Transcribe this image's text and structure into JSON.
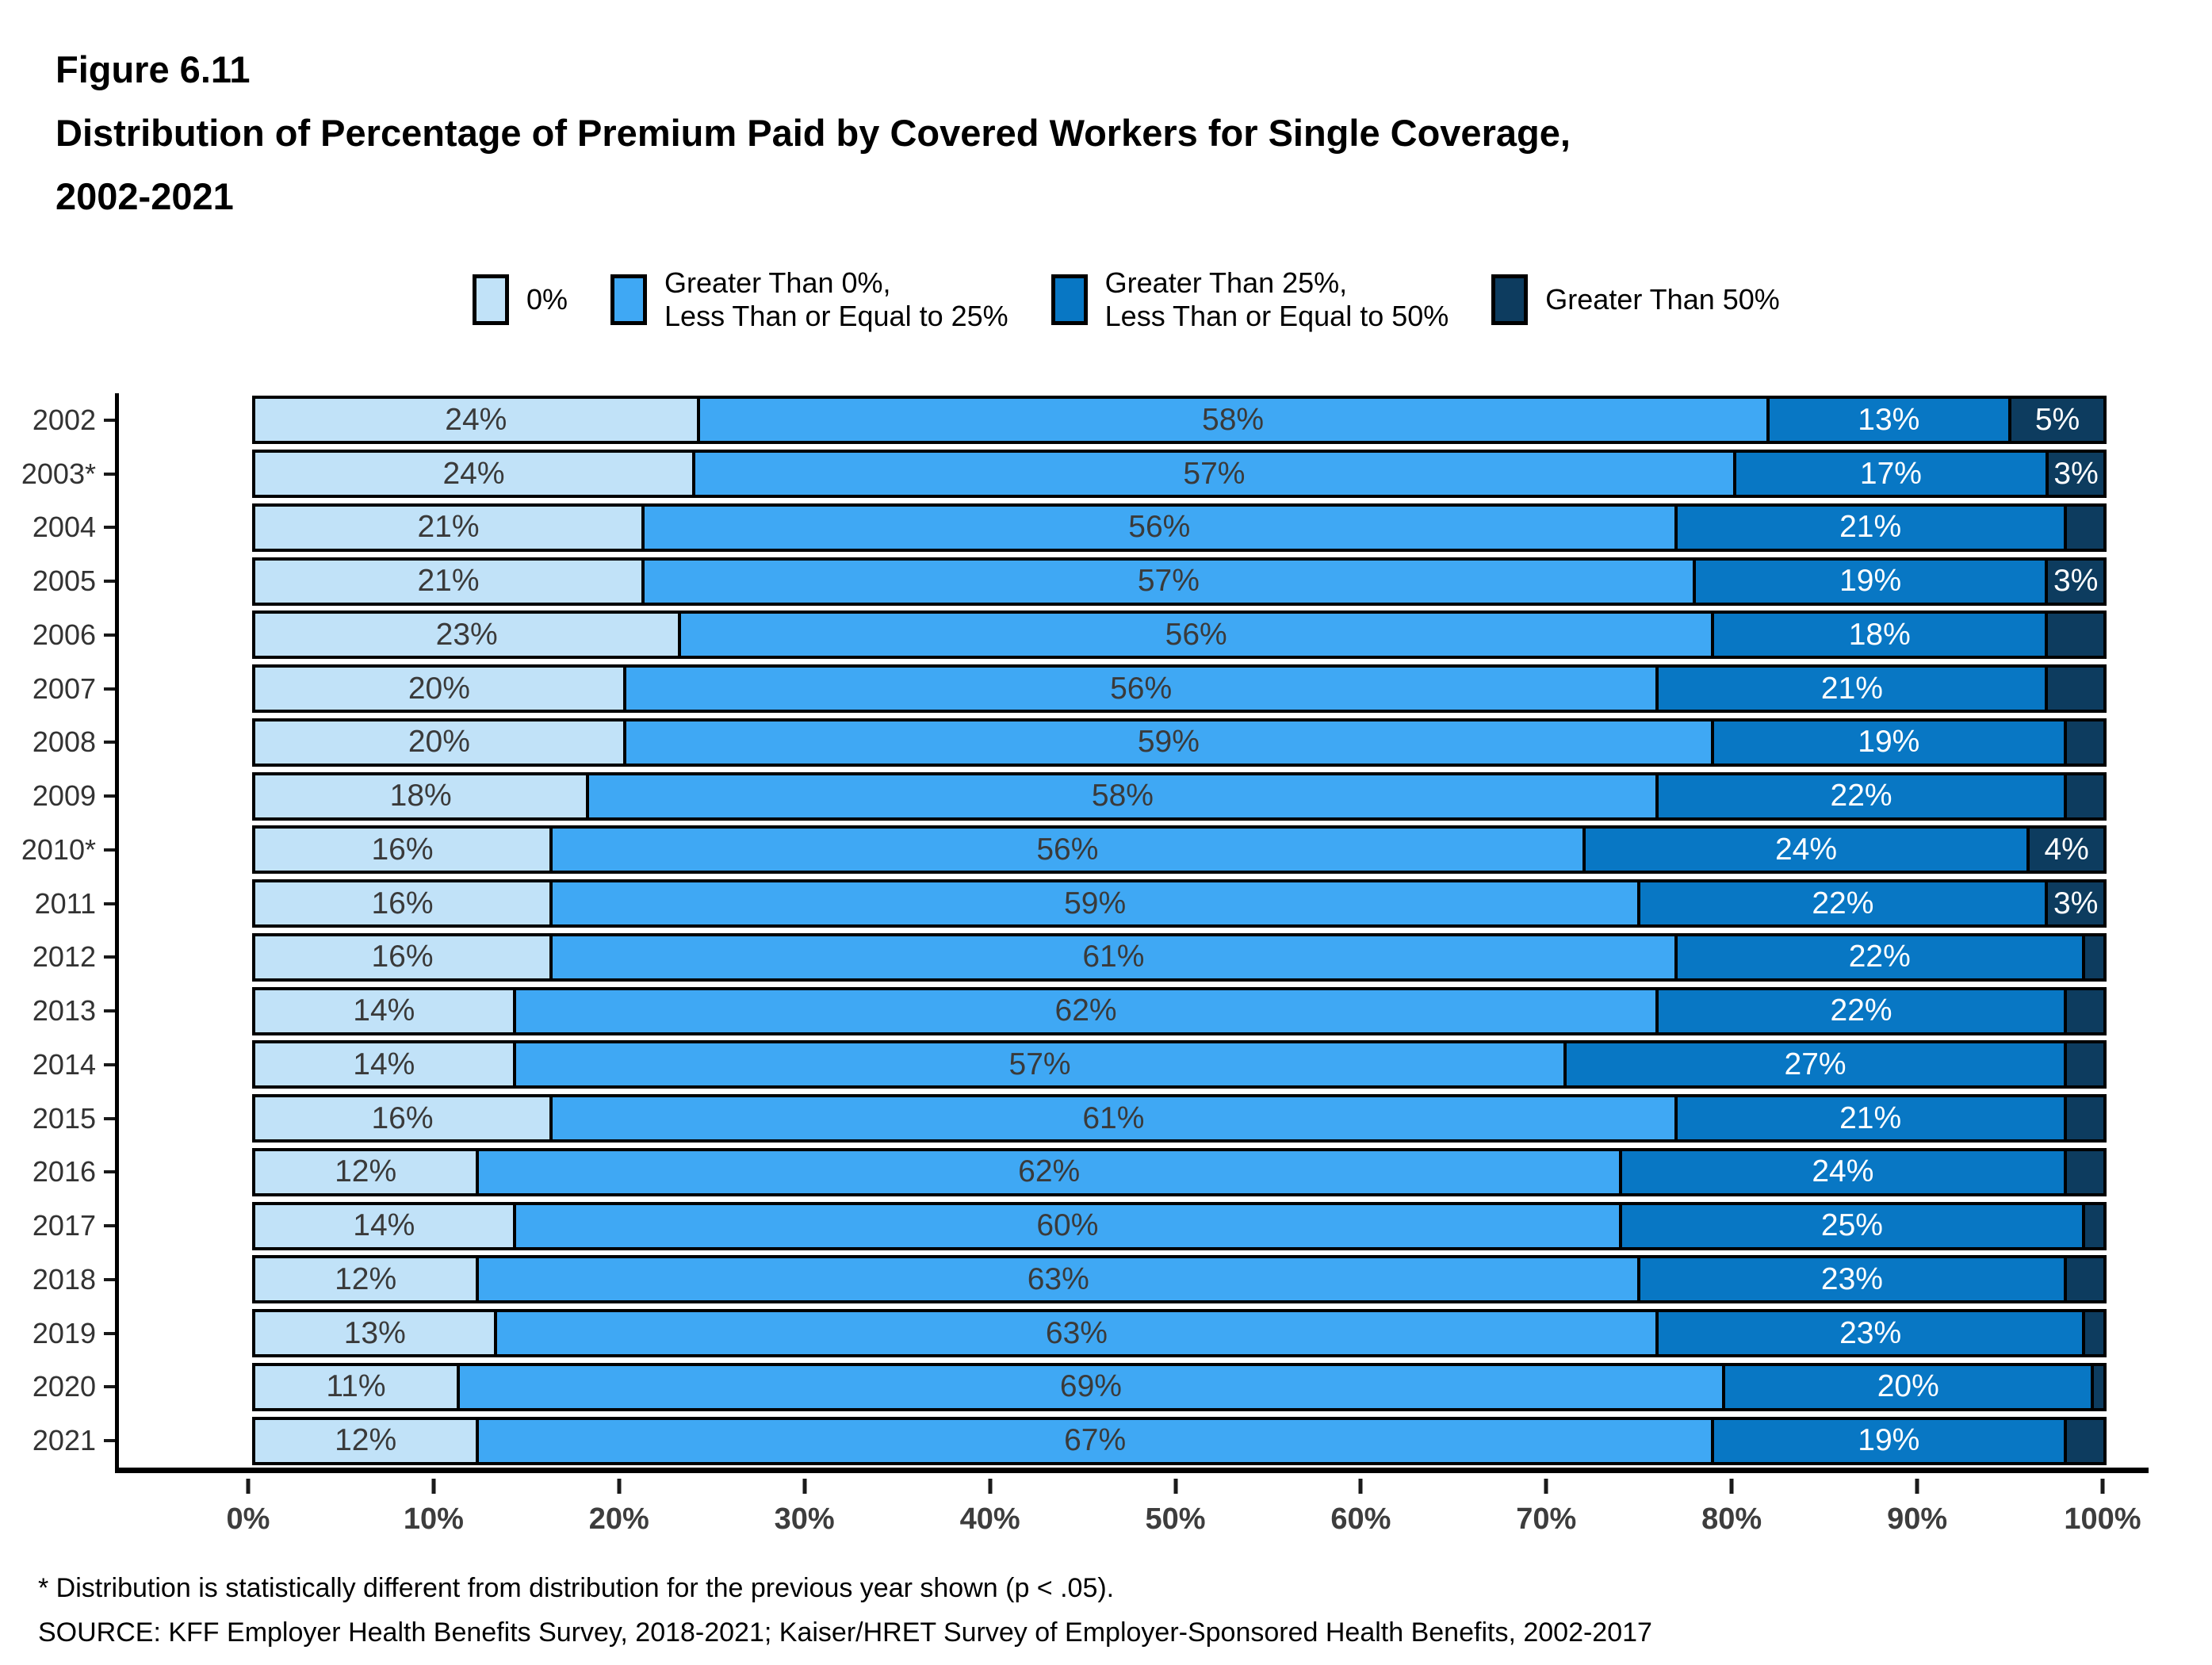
{
  "figure": {
    "label": "Figure 6.11",
    "title": "Distribution of Percentage of Premium Paid by Covered Workers for Single Coverage,",
    "subtitle": "2002-2021"
  },
  "legend": {
    "items": [
      {
        "label": "0%",
        "color": "#C1E2F8"
      },
      {
        "label": "Greater Than 0%,\nLess Than or Equal to 25%",
        "color": "#3FA8F4"
      },
      {
        "label": "Greater Than 25%,\nLess Than or Equal to 50%",
        "color": "#0877C4"
      },
      {
        "label": "Greater Than 50%",
        "color": "#0D3C5F"
      }
    ]
  },
  "chart_data": {
    "type": "bar",
    "orientation": "horizontal",
    "stacked": true,
    "title": "Distribution of Percentage of Premium Paid by Covered Workers for Single Coverage, 2002-2021",
    "categories": [
      "2002",
      "2003*",
      "2004",
      "2005",
      "2006",
      "2007",
      "2008",
      "2009",
      "2010*",
      "2011",
      "2012",
      "2013",
      "2014",
      "2015",
      "2016",
      "2017",
      "2018",
      "2019",
      "2020",
      "2021"
    ],
    "series": [
      {
        "name": "0%",
        "color": "#C1E2F8",
        "label_color": "#3A3A3A",
        "values": [
          24,
          24,
          21,
          21,
          23,
          20,
          20,
          18,
          16,
          16,
          16,
          14,
          14,
          16,
          12,
          14,
          12,
          13,
          11,
          12
        ],
        "labels": [
          "24%",
          "24%",
          "21%",
          "21%",
          "23%",
          "20%",
          "20%",
          "18%",
          "16%",
          "16%",
          "16%",
          "14%",
          "14%",
          "16%",
          "12%",
          "14%",
          "12%",
          "13%",
          "11%",
          "12%"
        ]
      },
      {
        "name": "Greater Than 0%, Less Than or Equal to 25%",
        "color": "#3FA8F4",
        "label_color": "#3A3A3A",
        "values": [
          58,
          57,
          56,
          57,
          56,
          56,
          59,
          58,
          56,
          59,
          61,
          62,
          57,
          61,
          62,
          60,
          63,
          63,
          69,
          67
        ],
        "labels": [
          "58%",
          "57%",
          "56%",
          "57%",
          "56%",
          "56%",
          "59%",
          "58%",
          "56%",
          "59%",
          "61%",
          "62%",
          "57%",
          "61%",
          "62%",
          "60%",
          "63%",
          "63%",
          "69%",
          "67%"
        ]
      },
      {
        "name": "Greater Than 25%, Less Than or Equal to 50%",
        "color": "#0877C4",
        "label_color": "#FFFFFF",
        "values": [
          13,
          17,
          21,
          19,
          18,
          21,
          19,
          22,
          24,
          22,
          22,
          22,
          27,
          21,
          24,
          25,
          23,
          23,
          20,
          19
        ],
        "labels": [
          "13%",
          "17%",
          "21%",
          "19%",
          "18%",
          "21%",
          "19%",
          "22%",
          "24%",
          "22%",
          "22%",
          "22%",
          "27%",
          "21%",
          "24%",
          "25%",
          "23%",
          "23%",
          "20%",
          "19%"
        ]
      },
      {
        "name": "Greater Than 50%",
        "color": "#0D3C5F",
        "label_color": "#FFFFFF",
        "values": [
          5,
          3,
          2,
          3,
          3,
          3,
          2,
          2,
          4,
          3,
          1,
          2,
          2,
          2,
          2,
          1,
          2,
          1,
          0.5,
          2
        ],
        "labels": [
          "5%",
          "3%",
          "",
          "3%",
          "",
          "",
          "",
          "",
          "4%",
          "3%",
          "",
          "",
          "",
          "",
          "",
          "",
          "",
          "",
          "",
          ""
        ]
      }
    ],
    "x_ticks": [
      "0%",
      "10%",
      "20%",
      "30%",
      "40%",
      "50%",
      "60%",
      "70%",
      "80%",
      "90%",
      "100%"
    ],
    "xlim": [
      0,
      100
    ],
    "grid": false,
    "legend_position": "top"
  },
  "footnotes": {
    "note": "* Distribution is statistically different from distribution for the previous year shown (p < .05).",
    "source": "SOURCE: KFF Employer Health Benefits Survey, 2018-2021; Kaiser/HRET Survey of Employer-Sponsored Health Benefits, 2002-2017"
  }
}
